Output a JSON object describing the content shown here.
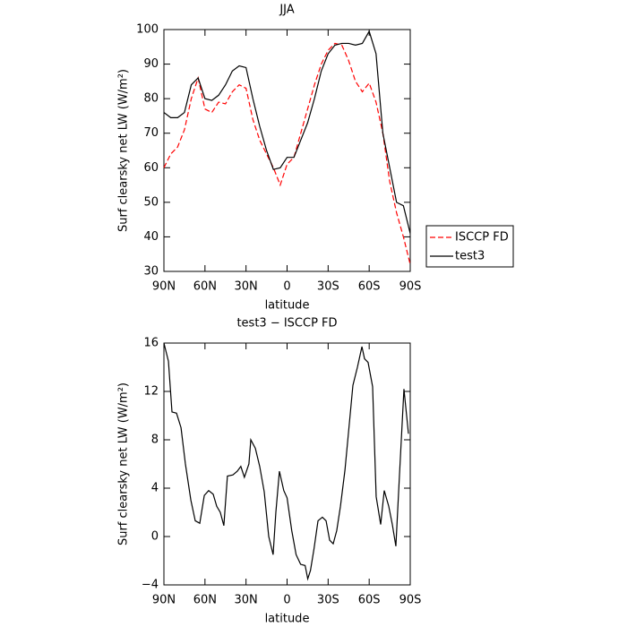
{
  "chart_data": [
    {
      "type": "line",
      "title": "JJA",
      "xlabel": "latitude",
      "ylabel": "Surf clearsky net LW (W/m²)",
      "x": [
        90,
        85,
        80,
        75,
        70,
        65,
        60,
        55,
        50,
        45,
        40,
        35,
        30,
        25,
        20,
        15,
        10,
        5,
        0,
        -5,
        -10,
        -15,
        -20,
        -25,
        -30,
        -35,
        -40,
        -45,
        -50,
        -55,
        -60,
        -65,
        -70,
        -75,
        -80,
        -85,
        -90
      ],
      "series": [
        {
          "name": "ISCCP FD",
          "color": "#ff0000",
          "line_style": "dashed",
          "values": [
            60,
            64,
            66,
            71,
            80,
            86,
            77,
            76,
            79,
            78.5,
            82,
            84,
            83,
            74,
            68,
            64,
            60,
            55,
            61,
            63,
            70,
            77,
            84,
            90,
            94,
            96,
            95.5,
            91,
            85,
            82,
            84.5,
            79,
            70,
            56,
            47,
            40,
            32
          ]
        },
        {
          "name": "test3",
          "color": "#000000",
          "line_style": "solid",
          "values": [
            76,
            74.5,
            74.5,
            76,
            84,
            86,
            80,
            79.5,
            81,
            84,
            88,
            89.5,
            89,
            80,
            72,
            65,
            59.5,
            60,
            63,
            63,
            68,
            73,
            80,
            88,
            93,
            95.5,
            96,
            96,
            95.5,
            96,
            99.5,
            93,
            70,
            60,
            50,
            49,
            41
          ]
        }
      ],
      "xlim": [
        90,
        -90
      ],
      "xticks": [
        {
          "value": 90,
          "label": "90N"
        },
        {
          "value": 60,
          "label": "60N"
        },
        {
          "value": 30,
          "label": "30N"
        },
        0,
        {
          "value": -30,
          "label": "30S"
        },
        {
          "value": -60,
          "label": "60S"
        },
        {
          "value": -90,
          "label": "90S"
        }
      ],
      "ylim": [
        30,
        100
      ],
      "yticks": [
        30,
        40,
        50,
        60,
        70,
        80,
        90,
        100
      ],
      "legend": "right"
    },
    {
      "type": "line",
      "title": "test3 − ISCCP FD",
      "xlabel": "latitude",
      "ylabel": "Surf clearsky net LW (W/m²)",
      "x": [
        90,
        86.7,
        84.1,
        80.8,
        77.5,
        74.3,
        70.3,
        67.1,
        63.8,
        60.5,
        57.3,
        54,
        51.4,
        48.8,
        46.2,
        43.6,
        39.6,
        36.4,
        33.8,
        31.2,
        27.9,
        26.5,
        23.2,
        20,
        16.7,
        13.4,
        10.2,
        8.2,
        5.6,
        2.4,
        0,
        -3.4,
        -6.6,
        -9.9,
        -13.2,
        -15.1,
        -17.1,
        -19.7,
        -22.6,
        -25.8,
        -28.5,
        -31.1,
        -33.7,
        -36.3,
        -39,
        -42.3,
        -44.8,
        -48.1,
        -51.4,
        -54.7,
        -56.6,
        -59.2,
        -62.5,
        -65.1,
        -68.4,
        -71,
        -74.3,
        -76.9,
        -79.5,
        -82.1,
        -85.4,
        -88.7
      ],
      "values": [
        16,
        14.5,
        10.3,
        10.2,
        9,
        6,
        3,
        1.3,
        1.1,
        3.4,
        3.8,
        3.5,
        2.5,
        2,
        0.9,
        5,
        5.1,
        5.4,
        5.8,
        4.9,
        6,
        8,
        7.3,
        5.8,
        3.7,
        0,
        -1.5,
        2,
        5.4,
        3.8,
        3.2,
        0.5,
        -1.5,
        -2.3,
        -2.4,
        -3.5,
        -2.8,
        -1,
        1.3,
        1.6,
        1.3,
        -0.3,
        -0.6,
        0.5,
        2.5,
        5.5,
        8.5,
        12.5,
        14,
        15.7,
        14.7,
        14.4,
        12.4,
        3.3,
        1,
        3.8,
        2.5,
        1,
        -0.8,
        5,
        12.2,
        8.5
      ],
      "color": "#000000",
      "xlim": [
        90,
        -90
      ],
      "xticks": [
        {
          "value": 90,
          "label": "90N"
        },
        {
          "value": 60,
          "label": "60N"
        },
        {
          "value": 30,
          "label": "30N"
        },
        0,
        {
          "value": -30,
          "label": "30S"
        },
        {
          "value": -60,
          "label": "60S"
        },
        {
          "value": -90,
          "label": "90S"
        }
      ],
      "ylim": [
        -4,
        16
      ],
      "yticks": [
        {
          "value": -4,
          "label": "−4"
        },
        0,
        4,
        8,
        12,
        16
      ]
    }
  ]
}
